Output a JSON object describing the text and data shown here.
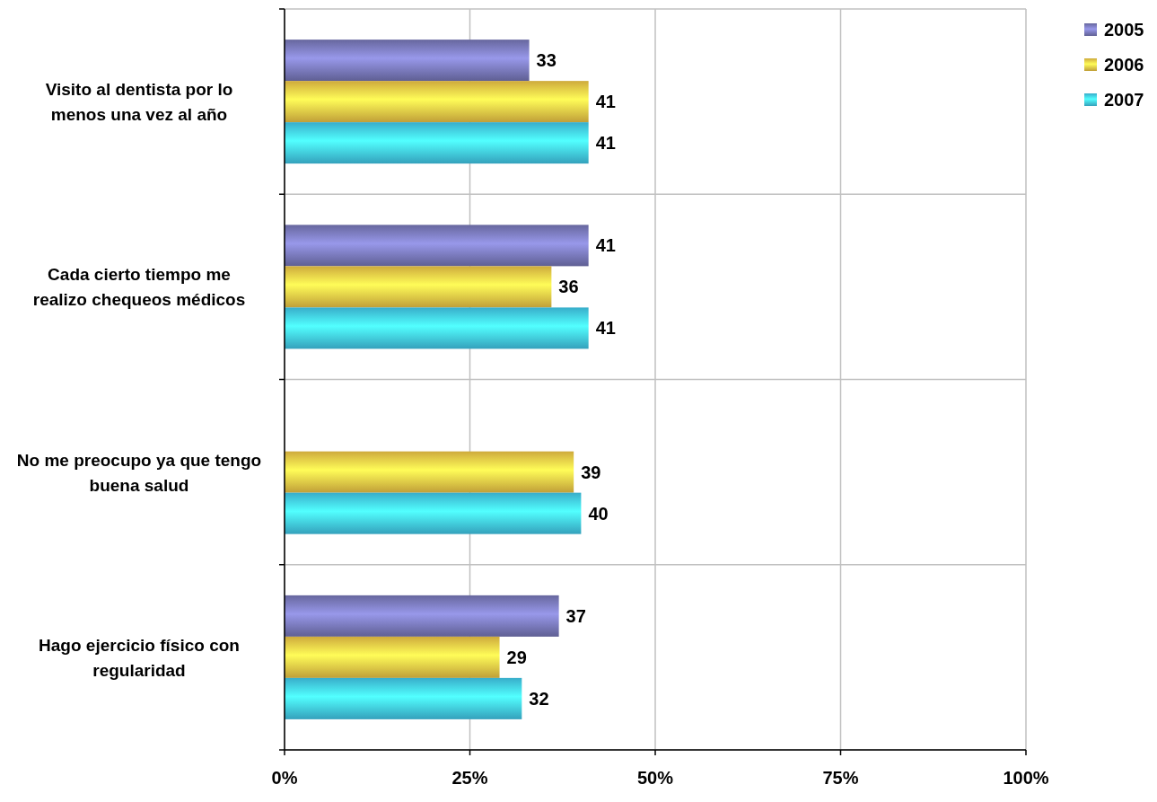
{
  "chart_data": {
    "type": "bar",
    "orientation": "horizontal",
    "categories": [
      "Visito al dentista por lo menos una vez al año",
      "Cada cierto tiempo me realizo chequeos médicos",
      "No me preocupo ya que tengo buena salud",
      "Hago ejercicio físico con regularidad"
    ],
    "series": [
      {
        "name": "2005",
        "color": "#7f7fc4",
        "values": [
          33,
          41,
          null,
          37
        ]
      },
      {
        "name": "2006",
        "color": "#ffd34a",
        "values": [
          41,
          36,
          39,
          29
        ]
      },
      {
        "name": "2007",
        "color": "#45d6fa",
        "values": [
          41,
          41,
          40,
          32
        ]
      }
    ],
    "xlim": [
      0,
      100
    ],
    "xticks": [
      {
        "value": 0,
        "label": "0%"
      },
      {
        "value": 25,
        "label": "25%"
      },
      {
        "value": 50,
        "label": "50%"
      },
      {
        "value": 75,
        "label": "75%"
      },
      {
        "value": 100,
        "label": "100%"
      }
    ],
    "grid": true,
    "legend": "top right",
    "data_labels": true
  }
}
